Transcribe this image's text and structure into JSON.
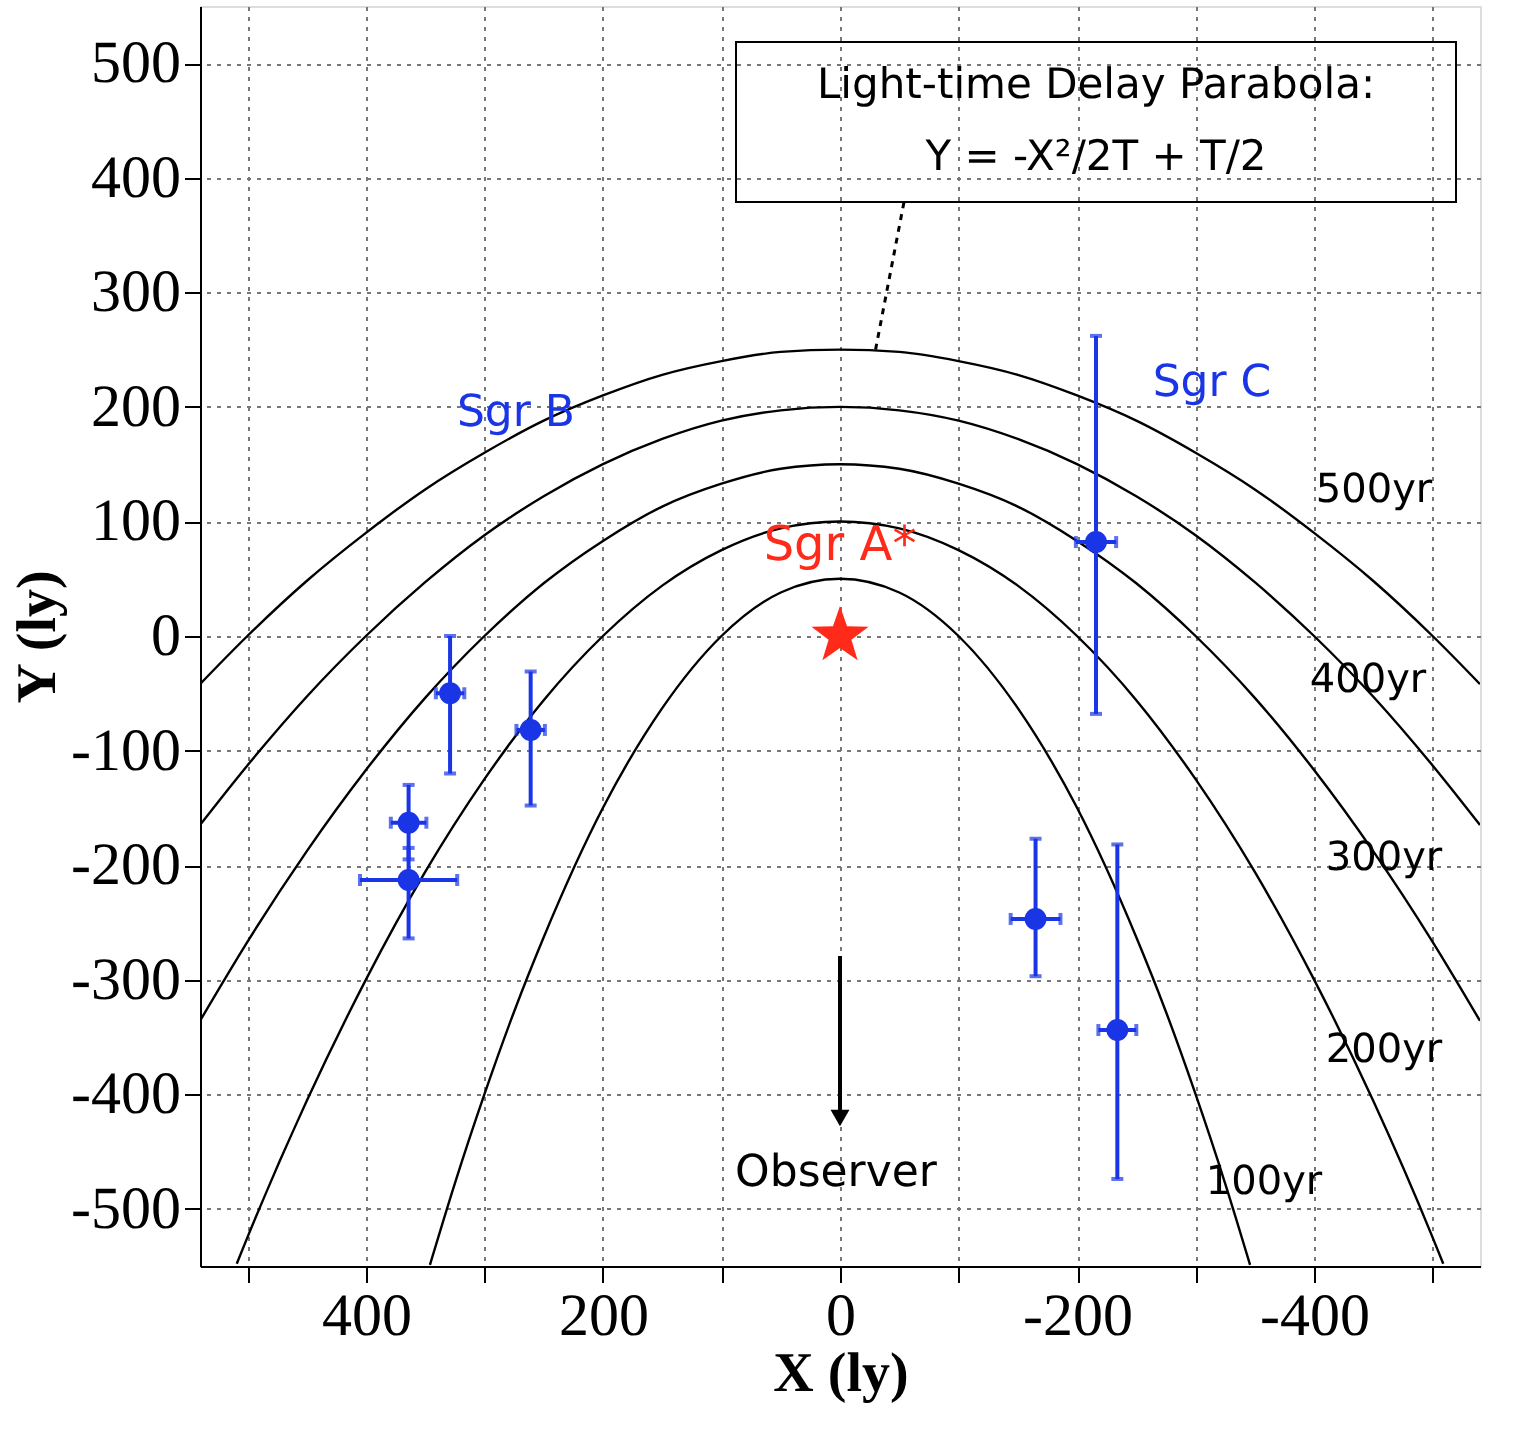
{
  "chart_data": {
    "type": "scatter",
    "xlabel": "X (ly)",
    "ylabel": "Y (ly)",
    "xlim": [
      540,
      -540
    ],
    "ylim": [
      -550,
      550
    ],
    "xticks": [
      {
        "value": 500,
        "label": null
      },
      400,
      {
        "value": 300,
        "label": null
      },
      200,
      {
        "value": 100,
        "label": null
      },
      0,
      {
        "value": -100,
        "label": null
      },
      -200,
      {
        "value": -300,
        "label": null
      },
      -400,
      {
        "value": -500,
        "label": null
      }
    ],
    "yticks": [
      -500,
      -400,
      -300,
      -200,
      -100,
      0,
      100,
      200,
      300,
      400,
      500
    ],
    "grid": true,
    "series": [
      {
        "type": "line",
        "name": "100yr",
        "color": "#000000",
        "x": [
          -346,
          -325,
          -300,
          -275,
          -250,
          -200,
          -150,
          -100,
          -50,
          0,
          50,
          100,
          150,
          200,
          250,
          275,
          300,
          325,
          346
        ],
        "values": [
          -549,
          -478,
          -400,
          -328,
          -263,
          -150,
          -63,
          0,
          38,
          50,
          38,
          0,
          -63,
          -150,
          -263,
          -328,
          -400,
          -478,
          -549
        ]
      },
      {
        "type": "line",
        "name": "200yr",
        "color": "#000000",
        "x": [
          -509,
          -500,
          -450,
          -400,
          -350,
          -300,
          -250,
          -200,
          -150,
          -100,
          -50,
          0,
          50,
          100,
          150,
          200,
          250,
          300,
          350,
          400,
          450,
          500,
          509
        ],
        "values": [
          -548,
          -525,
          -406,
          -300,
          -206,
          -125,
          -56,
          0,
          44,
          75,
          94,
          100,
          94,
          75,
          44,
          0,
          -56,
          -125,
          -206,
          -300,
          -406,
          -525,
          -548
        ]
      },
      {
        "type": "line",
        "name": "300yr",
        "color": "#000000",
        "x": [
          -540,
          -500,
          -450,
          -400,
          -350,
          -300,
          -250,
          -200,
          -150,
          -100,
          -50,
          0,
          50,
          100,
          150,
          200,
          250,
          300,
          350,
          400,
          450,
          500,
          540
        ],
        "values": [
          -336,
          -267,
          -188,
          -117,
          -54,
          0,
          46,
          83,
          113,
          133,
          146,
          150,
          146,
          133,
          113,
          83,
          46,
          0,
          -54,
          -117,
          -188,
          -267,
          -336
        ]
      },
      {
        "type": "line",
        "name": "400yr",
        "color": "#000000",
        "x": [
          -540,
          -500,
          -450,
          -400,
          -350,
          -300,
          -250,
          -200,
          -150,
          -100,
          -50,
          0,
          50,
          100,
          150,
          200,
          250,
          300,
          350,
          400,
          450,
          500,
          540
        ],
        "values": [
          -165,
          -113,
          -53,
          0,
          47,
          88,
          122,
          150,
          172,
          188,
          197,
          200,
          197,
          188,
          172,
          150,
          122,
          88,
          47,
          0,
          -53,
          -113,
          -165
        ]
      },
      {
        "type": "line",
        "name": "500yr",
        "color": "#000000",
        "x": [
          -540,
          -500,
          -450,
          -400,
          -350,
          -300,
          -250,
          -200,
          -150,
          -100,
          -50,
          0,
          50,
          100,
          150,
          200,
          250,
          300,
          350,
          400,
          450,
          500,
          540
        ],
        "values": [
          -42,
          0,
          48,
          90,
          128,
          160,
          188,
          210,
          228,
          240,
          248,
          250,
          248,
          240,
          228,
          210,
          188,
          160,
          128,
          90,
          48,
          0,
          -42
        ]
      },
      {
        "color": "#1a35e6",
        "marker": "circle",
        "x": [
          329,
          261,
          364,
          364,
          -165,
          -234,
          -216
        ],
        "values": [
          -50,
          -82,
          -163,
          -213,
          -247,
          -344,
          82
        ],
        "errors": [
          [
            -120,
            0
          ],
          [
            -148,
            -31
          ],
          [
            -195,
            -130
          ],
          [
            -264,
            -185
          ],
          [
            -297,
            -177
          ],
          [
            -474,
            -182
          ],
          [
            -68,
            262
          ]
        ],
        "xerrors": [
          12,
          12,
          15,
          41,
          21,
          16,
          17
        ]
      },
      {
        "name": "Sgr A*",
        "color": "#ff2a1a",
        "marker": "star",
        "x": [
          0
        ],
        "values": [
          0
        ]
      }
    ],
    "annotations": [
      {
        "text": "Light-time Delay Parabola:\nY = -X²/2T + T/2",
        "x": -30,
        "y": 250
      },
      "Sgr B",
      "Sgr C",
      "Observer"
    ]
  }
}
